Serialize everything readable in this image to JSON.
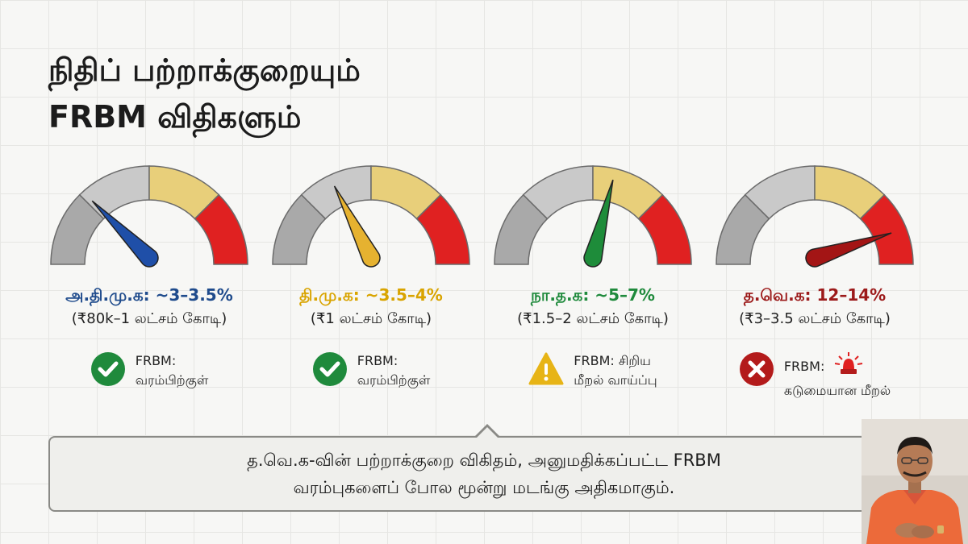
{
  "title": {
    "line1": "நிதிப் பற்றாக்குறையும்",
    "line2": "FRBM விதிகளும்"
  },
  "gauges": [
    {
      "party": "அ.தி.மு.க: ~3–3.5%",
      "amount": "(₹80k–1 லட்சம் கோடி)",
      "party_color": "#1f4b8c",
      "needle_color": "#1f4fa8",
      "needle_value": 0.25,
      "status_icon": "check-circle-icon",
      "status_line1": "FRBM:",
      "status_line2": "வரம்பிற்குள்"
    },
    {
      "party": "தி.மு.க: ~3.5–4%",
      "amount": "(₹1 லட்சம் கோடி)",
      "party_color": "#d9a400",
      "needle_color": "#e6b230",
      "needle_value": 0.35,
      "status_icon": "check-circle-icon",
      "status_line1": "FRBM:",
      "status_line2": "வரம்பிற்குள்"
    },
    {
      "party": "நா.த.க: ~5–7%",
      "amount": "(₹1.5–2 லட்சம் கோடி)",
      "party_color": "#1f8a3c",
      "needle_color": "#1e8c3a",
      "needle_value": 0.58,
      "status_icon": "warning-icon",
      "status_line1": "FRBM: சிறிய",
      "status_line2": "மீறல் வாய்ப்பு"
    },
    {
      "party": "த.வெ.க: 12–14%",
      "amount": "(₹3–3.5 லட்சம் கோடி)",
      "party_color": "#9c1a1a",
      "needle_color": "#a31515",
      "needle_value": 0.9,
      "status_icon": "cross-circle-icon",
      "status_line1": "FRBM:",
      "status_line2": "கடுமையான மீறல்",
      "alert_icon": "siren-icon"
    }
  ],
  "callout": {
    "line1": "த.வெ.க-வின் பற்றாக்குறை விகிதம், அனுமதிக்கப்பட்ட FRBM",
    "line2": "வரம்புகளைப் போல மூன்று மடங்கு அதிகமாகும்."
  },
  "colors": {
    "zone_gray": "#a9a9a9",
    "zone_light_gray": "#c9c9c9",
    "zone_yellow": "#e8cf7a",
    "zone_red": "#e02121",
    "check_green": "#1f8a3c",
    "warning_yellow": "#e7b416",
    "cross_red": "#b31b1b"
  }
}
